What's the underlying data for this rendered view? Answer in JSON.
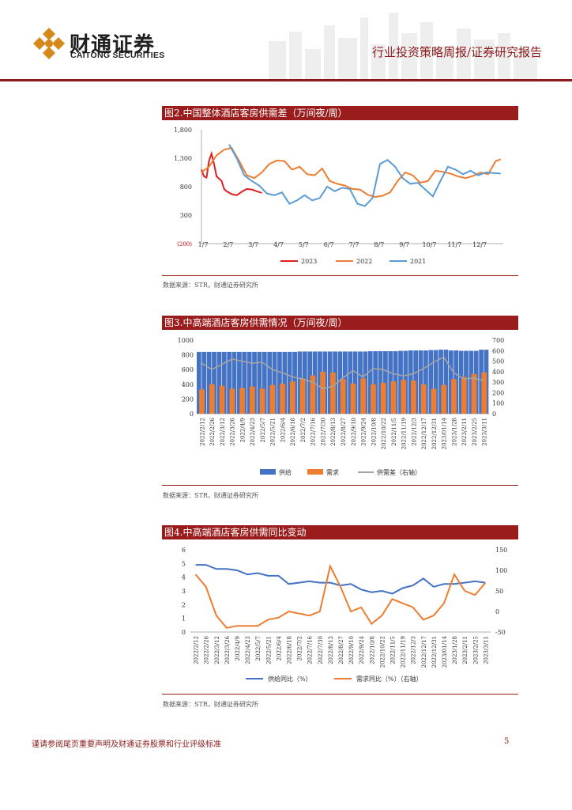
{
  "header": {
    "logo_cn": "财通证券",
    "logo_en": "CAITONG SECURITIES",
    "report_type": "行业投资策略周报/证券研究报告"
  },
  "figures": [
    {
      "title": "图2.中国整体酒店客房供需差（万间夜/周）",
      "source": "数据来源：STR，财通证券研究所"
    },
    {
      "title": "图3.中高端酒店客房供需情况（万间夜/周）",
      "source": "数据来源：STR，财通证券研究所"
    },
    {
      "title": "图4.中高端酒店客房供需同比变动",
      "source": "数据来源：STR，财通证券研究所"
    }
  ],
  "footer": {
    "disclaimer": "谨请参阅尾页重要声明及财通证券股票和行业评级标准",
    "page": "5"
  },
  "colors": {
    "brand": "#9b1c1c",
    "s2023": "#e02020",
    "s2022": "#ed7d31",
    "s2021": "#5b9bd5",
    "supply": "#4472c4",
    "demand": "#ed7d31",
    "gap": "#a5a5a5"
  },
  "chart_data": [
    {
      "type": "line",
      "ylim": [
        -200,
        1800
      ],
      "yticks": [
        "1,800",
        "1,300",
        "800",
        "300",
        "(200)"
      ],
      "xticks": [
        "1/7",
        "2/7",
        "3/7",
        "4/7",
        "5/7",
        "6/7",
        "7/7",
        "8/7",
        "9/7",
        "10/7",
        "11/7",
        "12/7"
      ],
      "series": [
        {
          "name": "2023",
          "color": "#e02020",
          "x": [
            0,
            0.1,
            0.2,
            0.3,
            0.4,
            0.5,
            0.6,
            0.7,
            0.8,
            0.9,
            1.0,
            1.2,
            1.4,
            1.6,
            1.8,
            2.0,
            2.2,
            2.4
          ],
          "values": [
            1100,
            980,
            960,
            1250,
            1380,
            1200,
            980,
            940,
            900,
            760,
            720,
            670,
            650,
            710,
            760,
            750,
            720,
            690
          ]
        },
        {
          "name": "2022",
          "color": "#ed7d31",
          "x": [
            0,
            0.3,
            0.6,
            0.9,
            1.2,
            1.5,
            1.8,
            2.1,
            2.4,
            2.7,
            3.0,
            3.3,
            3.6,
            3.9,
            4.2,
            4.5,
            4.8,
            5.1,
            5.4,
            5.7,
            6.0,
            6.3,
            6.6,
            6.9,
            7.2,
            7.5,
            7.8,
            8.1,
            8.4,
            8.7,
            9.0,
            9.3,
            9.6,
            9.9,
            10.2,
            10.5,
            10.8,
            11.1,
            11.4,
            11.7,
            11.9
          ],
          "values": [
            1050,
            1150,
            1350,
            1450,
            1480,
            1250,
            1000,
            950,
            1050,
            1200,
            1260,
            1250,
            1100,
            1150,
            1020,
            1000,
            1120,
            900,
            850,
            820,
            760,
            750,
            660,
            620,
            640,
            700,
            900,
            1050,
            1000,
            870,
            900,
            1080,
            1060,
            1030,
            980,
            950,
            990,
            1050,
            1020,
            1250,
            1280
          ]
        },
        {
          "name": "2021",
          "color": "#5b9bd5",
          "x": [
            1.1,
            1.4,
            1.7,
            2.0,
            2.3,
            2.6,
            2.9,
            3.2,
            3.5,
            3.8,
            4.1,
            4.4,
            4.7,
            5.0,
            5.3,
            5.6,
            5.9,
            6.2,
            6.5,
            6.8,
            7.1,
            7.4,
            7.7,
            8.0,
            8.3,
            8.6,
            8.9,
            9.2,
            9.5,
            9.8,
            10.1,
            10.4,
            10.7,
            11.0,
            11.3,
            11.6,
            11.9
          ],
          "values": [
            1540,
            1300,
            1000,
            900,
            820,
            680,
            650,
            700,
            500,
            560,
            650,
            560,
            600,
            800,
            720,
            780,
            760,
            500,
            460,
            600,
            1200,
            1270,
            1150,
            950,
            850,
            870,
            750,
            630,
            900,
            1150,
            1100,
            1020,
            1080,
            1000,
            1050,
            1040,
            1030
          ]
        }
      ]
    },
    {
      "type": "bar",
      "ylim": [
        0,
        1000
      ],
      "y2lim": [
        0,
        700
      ],
      "yticks": [
        "1000",
        "800",
        "600",
        "400",
        "200",
        "0"
      ],
      "y2ticks": [
        "700",
        "600",
        "500",
        "400",
        "300",
        "200",
        "100",
        "0"
      ],
      "categories": [
        "2022/2/12",
        "2022/2/26",
        "2022/3/12",
        "2022/3/26",
        "2022/4/9",
        "2022/4/23",
        "2022/5/7",
        "2022/5/21",
        "2022/6/4",
        "2022/6/18",
        "2022/7/2",
        "2022/7/16",
        "2022/7/30",
        "2022/8/13",
        "2022/8/27",
        "2022/9/10",
        "2022/9/24",
        "2022/10/8",
        "2022/10/22",
        "2022/11/5",
        "2022/11/19",
        "2022/12/3",
        "2022/12/17",
        "2022/12/31",
        "2023/01/14",
        "2023/1/28",
        "2023/2/11",
        "2023/2/25",
        "2023/3/11"
      ],
      "series": [
        {
          "name": "供给",
          "color": "#4472c4",
          "values": [
            840,
            840,
            840,
            840,
            840,
            840,
            840,
            840,
            840,
            840,
            845,
            845,
            845,
            845,
            845,
            845,
            845,
            850,
            850,
            850,
            855,
            860,
            860,
            865,
            870,
            860,
            855,
            855,
            870
          ]
        },
        {
          "name": "需求",
          "color": "#ed7d31",
          "values": [
            330,
            400,
            380,
            340,
            350,
            370,
            340,
            390,
            410,
            440,
            480,
            520,
            570,
            560,
            470,
            410,
            480,
            400,
            420,
            440,
            460,
            450,
            400,
            340,
            390,
            470,
            500,
            540,
            560
          ]
        },
        {
          "name": "供需差（右轴）",
          "color": "#a5a5a5",
          "values": [
            480,
            420,
            470,
            520,
            500,
            480,
            490,
            420,
            390,
            350,
            330,
            300,
            240,
            260,
            340,
            410,
            350,
            430,
            420,
            380,
            360,
            380,
            430,
            490,
            540,
            390,
            330,
            340,
            310
          ]
        }
      ]
    },
    {
      "type": "line",
      "ylim": [
        0,
        6
      ],
      "y2lim": [
        -50,
        150
      ],
      "yticks": [
        "6",
        "5",
        "4",
        "3",
        "2",
        "1",
        "0"
      ],
      "y2ticks": [
        "150",
        "100",
        "50",
        "0",
        "-50"
      ],
      "categories": [
        "2022/2/12",
        "2022/2/26",
        "2022/3/12",
        "2022/3/26",
        "2022/4/9",
        "2022/4/23",
        "2022/5/7",
        "2022/5/21",
        "2022/6/4",
        "2022/6/18",
        "2022/7/2",
        "2022/7/16",
        "2022/7/30",
        "2022/8/13",
        "2022/8/27",
        "2022/9/10",
        "2022/9/24",
        "2022/10/8",
        "2022/10/22",
        "2022/11/5",
        "2022/11/19",
        "2022/12/3",
        "2022/12/17",
        "2022/12/31",
        "2023/01/14",
        "2023/1/28",
        "2023/2/11",
        "2023/2/25",
        "2023/3/11"
      ],
      "series": [
        {
          "name": "供给同比（%）",
          "color": "#4472c4",
          "values": [
            4.9,
            4.9,
            4.6,
            4.6,
            4.5,
            4.2,
            4.3,
            4.1,
            4.1,
            3.5,
            3.6,
            3.7,
            3.6,
            3.6,
            3.4,
            3.5,
            3.1,
            2.9,
            3.0,
            2.8,
            3.2,
            3.4,
            3.9,
            3.3,
            3.5,
            3.5,
            3.6,
            3.7,
            3.6
          ]
        },
        {
          "name": "需求同比（%）（右轴）",
          "color": "#ed7d31",
          "values": [
            90,
            60,
            -10,
            -40,
            -35,
            -35,
            -35,
            -20,
            -15,
            0,
            -5,
            -10,
            0,
            110,
            60,
            0,
            10,
            -30,
            -10,
            30,
            20,
            10,
            -20,
            -10,
            20,
            90,
            50,
            40,
            70
          ]
        }
      ]
    }
  ]
}
